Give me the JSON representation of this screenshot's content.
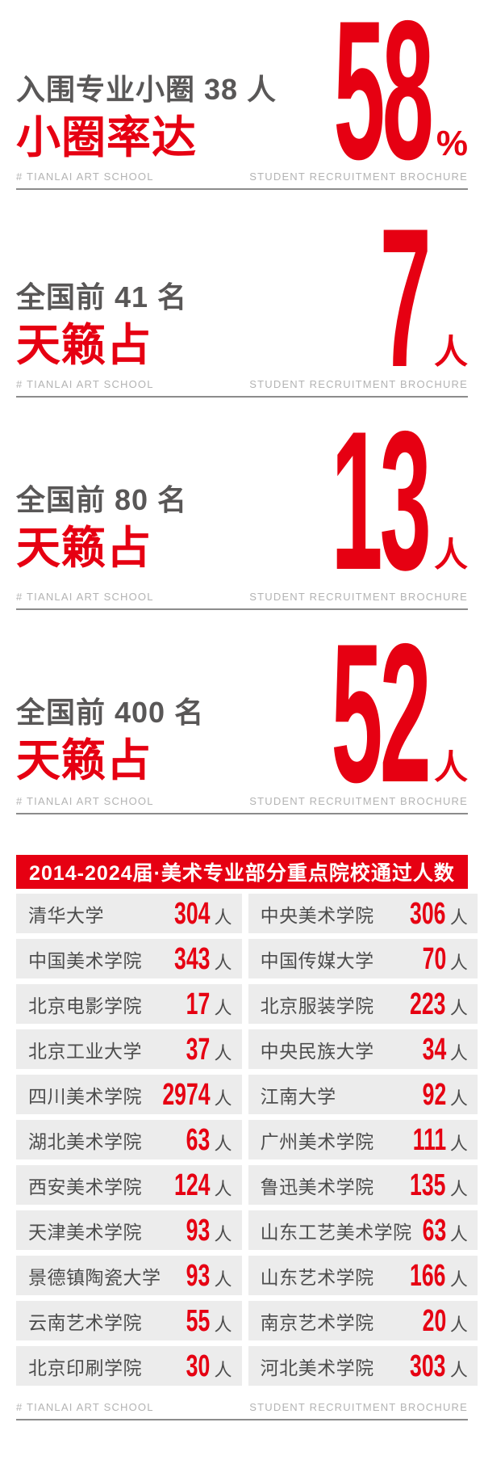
{
  "brand_red": "#e60012",
  "footer": {
    "left": "# TIANLAI ART SCHOOL",
    "right": "STUDENT RECRUITMENT BROCHURE"
  },
  "stats": [
    {
      "line1": "入围专业小圈 38 人",
      "line2": "小圈率达",
      "big": "58",
      "unit": "%"
    },
    {
      "line1": "全国前 41 名",
      "line2": "天籁占",
      "big": "7",
      "unit": "人"
    },
    {
      "line1": "全国前 80 名",
      "line2": "天籁占",
      "big": "13",
      "unit": "人"
    },
    {
      "line1": "全国前 400 名",
      "line2": "天籁占",
      "big": "52",
      "unit": "人"
    }
  ],
  "table": {
    "title": "2014-2024届·美术专业部分重点院校通过人数",
    "unit": "人",
    "columns": [
      {
        "rows": [
          {
            "school": "清华大学",
            "count": "304"
          },
          {
            "school": "中国美术学院",
            "count": "343"
          },
          {
            "school": "北京电影学院",
            "count": "17"
          },
          {
            "school": "北京工业大学",
            "count": "37"
          },
          {
            "school": "四川美术学院",
            "count": "2974"
          },
          {
            "school": "湖北美术学院",
            "count": "63"
          },
          {
            "school": "西安美术学院",
            "count": "124"
          },
          {
            "school": "天津美术学院",
            "count": "93"
          },
          {
            "school": "景德镇陶瓷大学",
            "count": "93"
          },
          {
            "school": "云南艺术学院",
            "count": "55"
          },
          {
            "school": "北京印刷学院",
            "count": "30"
          }
        ]
      },
      {
        "rows": [
          {
            "school": "中央美术学院",
            "count": "306"
          },
          {
            "school": "中国传媒大学",
            "count": "70"
          },
          {
            "school": "北京服装学院",
            "count": "223"
          },
          {
            "school": "中央民族大学",
            "count": "34"
          },
          {
            "school": "江南大学",
            "count": "92"
          },
          {
            "school": "广州美术学院",
            "count": "111"
          },
          {
            "school": "鲁迅美术学院",
            "count": "135"
          },
          {
            "school": "山东工艺美术学院",
            "count": "63"
          },
          {
            "school": "山东艺术学院",
            "count": "166"
          },
          {
            "school": "南京艺术学院",
            "count": "20"
          },
          {
            "school": "河北美术学院",
            "count": "303"
          }
        ]
      }
    ]
  }
}
